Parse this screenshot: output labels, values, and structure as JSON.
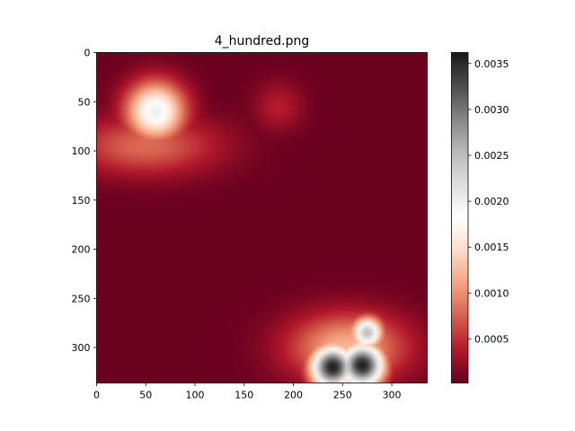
{
  "chart_data": {
    "type": "heatmap",
    "title": "4_hundred.png",
    "xlabel": "",
    "ylabel": "",
    "xlim": [
      0,
      336
    ],
    "ylim": [
      336,
      0
    ],
    "x_ticks": [
      0,
      50,
      100,
      150,
      200,
      250,
      300
    ],
    "y_ticks": [
      0,
      50,
      100,
      150,
      200,
      250,
      300
    ],
    "colormap": "RdGy",
    "colorbar": {
      "range": [
        2e-05,
        0.00362
      ],
      "ticks": [
        0.0005,
        0.001,
        0.0015,
        0.002,
        0.0025,
        0.003,
        0.0035
      ],
      "tick_labels": [
        "0.0005",
        "0.0010",
        "0.0015",
        "0.0020",
        "0.0025",
        "0.0030",
        "0.0035"
      ]
    },
    "background_value": 3e-05,
    "features": [
      {
        "kind": "hotspot",
        "x": 60,
        "y": 60,
        "peak": 0.002,
        "spread": 30
      },
      {
        "kind": "region",
        "x": 50,
        "y": 95,
        "peak": 0.0008,
        "spread_x": 75,
        "spread_y": 30
      },
      {
        "kind": "hotspot",
        "x": 185,
        "y": 55,
        "peak": 0.0004,
        "spread": 25
      },
      {
        "kind": "hotspot",
        "x": 240,
        "y": 320,
        "peak": 0.0036,
        "spread": 22
      },
      {
        "kind": "hotspot",
        "x": 270,
        "y": 318,
        "peak": 0.0036,
        "spread": 22
      },
      {
        "kind": "hotspot",
        "x": 275,
        "y": 285,
        "peak": 0.0025,
        "spread": 16
      },
      {
        "kind": "region",
        "x": 255,
        "y": 300,
        "peak": 0.0012,
        "spread_x": 60,
        "spread_y": 35
      }
    ]
  }
}
